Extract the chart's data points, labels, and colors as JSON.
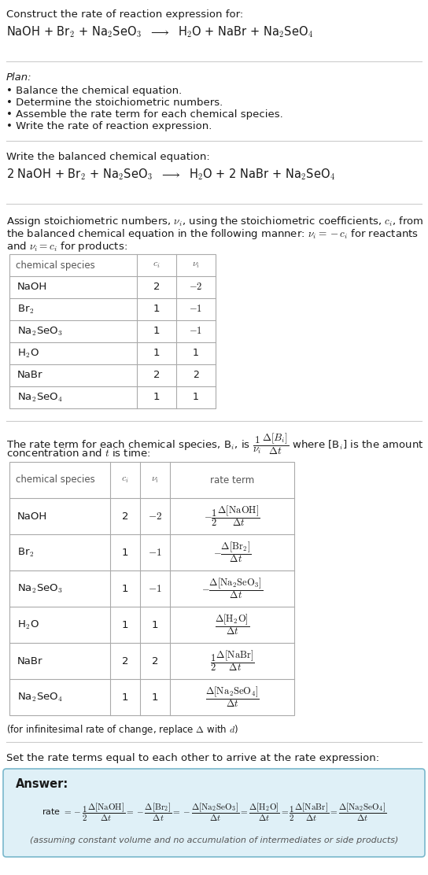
{
  "title_text": "Construct the rate of reaction expression for:",
  "reaction_unbalanced": "NaOH + Br$_2$ + Na$_2$SeO$_3$  $\\longrightarrow$  H$_2$O + NaBr + Na$_2$SeO$_4$",
  "plan_header": "Plan:",
  "plan_items": [
    "Balance the chemical equation.",
    "Determine the stoichiometric numbers.",
    "Assemble the rate term for each chemical species.",
    "Write the rate of reaction expression."
  ],
  "balanced_header": "Write the balanced chemical equation:",
  "reaction_balanced": "2 NaOH + Br$_2$ + Na$_2$SeO$_3$  $\\longrightarrow$  H$_2$O + 2 NaBr + Na$_2$SeO$_4$",
  "stoich_text1": "Assign stoichiometric numbers, $\\nu_i$, using the stoichiometric coefficients, $c_i$, from",
  "stoich_text2": "the balanced chemical equation in the following manner: $\\nu_i = -c_i$ for reactants",
  "stoich_text3": "and $\\nu_i = c_i$ for products:",
  "table1_headers": [
    "chemical species",
    "$c_i$",
    "$\\nu_i$"
  ],
  "table1_rows": [
    [
      "NaOH",
      "2",
      "$-2$"
    ],
    [
      "Br$_2$",
      "1",
      "$-1$"
    ],
    [
      "Na$_2$SeO$_3$",
      "1",
      "$-1$"
    ],
    [
      "H$_2$O",
      "1",
      "1"
    ],
    [
      "NaBr",
      "2",
      "2"
    ],
    [
      "Na$_2$SeO$_4$",
      "1",
      "1"
    ]
  ],
  "rate_text1": "The rate term for each chemical species, B$_i$, is $\\dfrac{1}{\\nu_i}\\dfrac{\\Delta[B_i]}{\\Delta t}$ where [B$_i$] is the amount",
  "rate_text2": "concentration and $t$ is time:",
  "table2_headers": [
    "chemical species",
    "$c_i$",
    "$\\nu_i$",
    "rate term"
  ],
  "table2_rows": [
    [
      "NaOH",
      "2",
      "$-2$",
      "$-\\dfrac{1}{2}\\dfrac{\\Delta[\\mathrm{NaOH}]}{\\Delta t}$"
    ],
    [
      "Br$_2$",
      "1",
      "$-1$",
      "$-\\dfrac{\\Delta[\\mathrm{Br_2}]}{\\Delta t}$"
    ],
    [
      "Na$_2$SeO$_3$",
      "1",
      "$-1$",
      "$-\\dfrac{\\Delta[\\mathrm{Na_2SeO_3}]}{\\Delta t}$"
    ],
    [
      "H$_2$O",
      "1",
      "1",
      "$\\dfrac{\\Delta[\\mathrm{H_2O}]}{\\Delta t}$"
    ],
    [
      "NaBr",
      "2",
      "2",
      "$\\dfrac{1}{2}\\dfrac{\\Delta[\\mathrm{NaBr}]}{\\Delta t}$"
    ],
    [
      "Na$_2$SeO$_4$",
      "1",
      "1",
      "$\\dfrac{\\Delta[\\mathrm{Na_2SeO_4}]}{\\Delta t}$"
    ]
  ],
  "infinitesimal_note": "(for infinitesimal rate of change, replace $\\Delta$ with $d$)",
  "set_rate_text": "Set the rate terms equal to each other to arrive at the rate expression:",
  "answer_label": "Answer:",
  "answer_box_color": "#dff0f7",
  "answer_box_border": "#7ab8cc",
  "rate_expression_parts": [
    "rate $= -\\dfrac{1}{2}\\dfrac{\\Delta[\\mathrm{NaOH}]}{\\Delta t} = -\\dfrac{\\Delta[\\mathrm{Br_2}]}{\\Delta t} = -\\dfrac{\\Delta[\\mathrm{Na_2SeO_3}]}{\\Delta t} = \\dfrac{\\Delta[\\mathrm{H_2O}]}{\\Delta t} = \\dfrac{1}{2}\\dfrac{\\Delta[\\mathrm{NaBr}]}{\\Delta t} = \\dfrac{\\Delta[\\mathrm{Na_2SeO_4}]}{\\Delta t}$"
  ],
  "assuming_note": "(assuming constant volume and no accumulation of intermediates or side products)",
  "bg_color": "#ffffff",
  "text_color": "#1a1a1a",
  "grey_color": "#555555",
  "table_line_color": "#aaaaaa",
  "sep_line_color": "#cccccc",
  "fs": 9.5,
  "fs_small": 8.5,
  "fs_reaction": 10.5
}
